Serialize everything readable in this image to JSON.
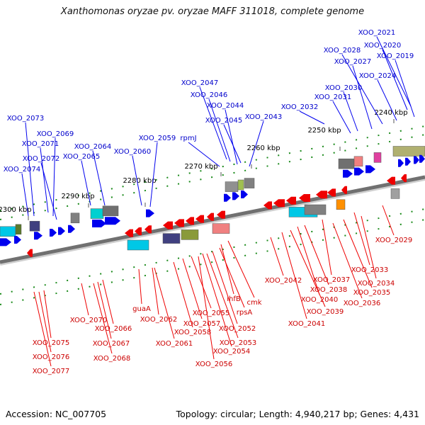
{
  "title": "Xanthomonas oryzae pv. oryzae MAFF 311018, complete genome",
  "footer": {
    "accession": "Accession: NC_007705",
    "summary": "Topology: circular; Length: 4,940,217 bp; Genes: 4,431"
  },
  "colors": {
    "forward_gene": "#0000ee",
    "reverse_gene": "#ee0000",
    "forward_label": "#0000cc",
    "reverse_label": "#cc0000",
    "backbone": "#707070",
    "tick": "#1a8a1a"
  },
  "ticks": [
    {
      "label": "2240 kbp"
    },
    {
      "label": "2250 kbp"
    },
    {
      "label": "2260 kbp"
    },
    {
      "label": "2270 kbp"
    },
    {
      "label": "2280 kbp"
    },
    {
      "label": "2290 kbp"
    },
    {
      "label": "2300 kbp"
    }
  ],
  "forward_labels": [
    {
      "text": "XOO_2021"
    },
    {
      "text": "XOO_2020"
    },
    {
      "text": "XOO_2028"
    },
    {
      "text": "XOO_2019"
    },
    {
      "text": "XOO_2027"
    },
    {
      "text": "XOO_2024"
    },
    {
      "text": "XOO_2047"
    },
    {
      "text": "XOO_2030"
    },
    {
      "text": "XOO_2046"
    },
    {
      "text": "XOO_2031"
    },
    {
      "text": "XOO_2044"
    },
    {
      "text": "XOO_2032"
    },
    {
      "text": "XOO_2073"
    },
    {
      "text": "XOO_2043"
    },
    {
      "text": "XOO_2045"
    },
    {
      "text": "XOO_2069"
    },
    {
      "text": "XOO_2059"
    },
    {
      "text": "rpmJ"
    },
    {
      "text": "XOO_2071"
    },
    {
      "text": "XOO_2064"
    },
    {
      "text": "XOO_2060"
    },
    {
      "text": "XOO_2072"
    },
    {
      "text": "XOO_2065"
    },
    {
      "text": "XOO_2074"
    }
  ],
  "reverse_labels": [
    {
      "text": "XOO_2029"
    },
    {
      "text": "XOO_2033"
    },
    {
      "text": "XOO_2042"
    },
    {
      "text": "XOO_2037"
    },
    {
      "text": "XOO_2034"
    },
    {
      "text": "XOO_2038"
    },
    {
      "text": "XOO_2035"
    },
    {
      "text": "ihfB"
    },
    {
      "text": "cmk"
    },
    {
      "text": "XOO_2040"
    },
    {
      "text": "guaA"
    },
    {
      "text": "XOO_2036"
    },
    {
      "text": "rpsA"
    },
    {
      "text": "XOO_2055"
    },
    {
      "text": "XOO_2039"
    },
    {
      "text": "XOO_2062"
    },
    {
      "text": "XOO_2070"
    },
    {
      "text": "XOO_2057"
    },
    {
      "text": "XOO_2041"
    },
    {
      "text": "XOO_2066"
    },
    {
      "text": "XOO_2052"
    },
    {
      "text": "XOO_2058"
    },
    {
      "text": "XOO_2053"
    },
    {
      "text": "XOO_2061"
    },
    {
      "text": "XOO_2075"
    },
    {
      "text": "XOO_2067"
    },
    {
      "text": "XOO_2054"
    },
    {
      "text": "XOO_2076"
    },
    {
      "text": "XOO_2068"
    },
    {
      "text": "XOO_2056"
    },
    {
      "text": "XOO_2077"
    }
  ]
}
